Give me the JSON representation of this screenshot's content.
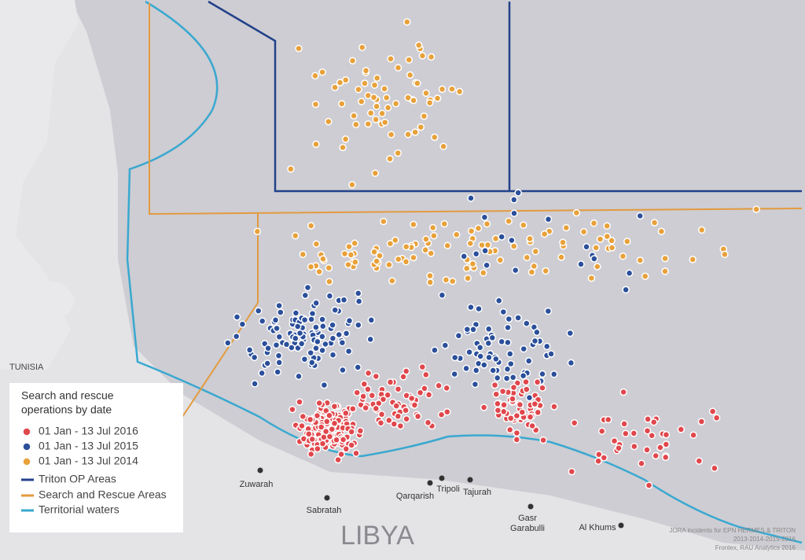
{
  "map": {
    "countries": {
      "tunisia": "TUNISIA",
      "libya": "LIBYA"
    },
    "cities": [
      "Zuwarah",
      "Sabratah",
      "Qarqarish",
      "Tripoli",
      "Tajurah",
      "Gasr",
      "Garabulli",
      "Al Khums"
    ],
    "legend": {
      "title": [
        "Search and rescue",
        "operations by date"
      ],
      "items": [
        "01 Jan - 13 Jul 2016",
        "01 Jan - 13 Jul 2015",
        "01 Jan - 13 Jul 2014",
        "Triton OP Areas",
        "Search and Rescue Areas",
        "Territorial waters"
      ]
    },
    "source": [
      "JORA incidents for EPN HERMES & TRITON",
      "2013-2014-2015-2016",
      "Frontex, RAU Analytics 2016"
    ]
  }
}
